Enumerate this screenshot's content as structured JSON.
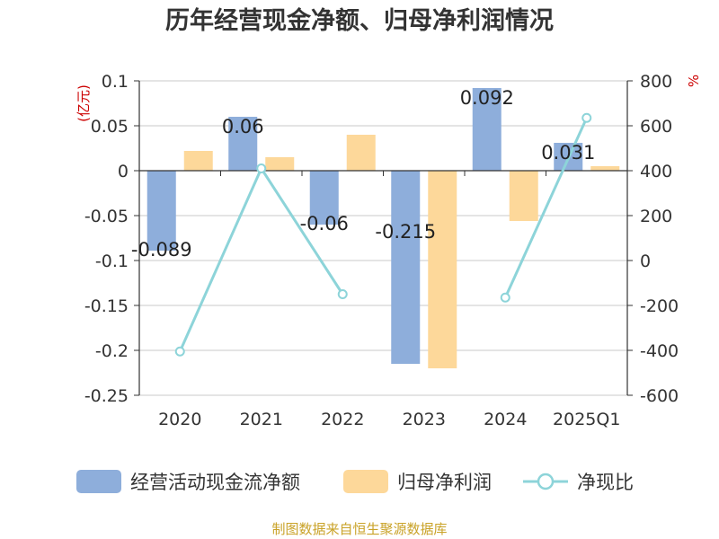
{
  "title": "历年经营现金净额、归母净利润情况",
  "source": "制图数据来自恒生聚源数据库",
  "colors": {
    "cash": "#8eaedb",
    "profit": "#fdd89a",
    "ratio": "#8dd4d9",
    "axis": "#333333",
    "grid": "#c8c8c8",
    "unit": "#cc0000"
  },
  "chart_data": {
    "type": "bar",
    "categories": [
      "2020",
      "2021",
      "2022",
      "2023",
      "2024",
      "2025Q1"
    ],
    "left_axis": {
      "unit": "亿元",
      "ylim": [
        -0.25,
        0.1
      ],
      "ticks": [
        0.1,
        0.05,
        0,
        -0.05,
        -0.1,
        -0.15,
        -0.2,
        -0.25
      ],
      "tick_labels": [
        "0.1",
        "0.05",
        "0",
        "-0.05",
        "-0.1",
        "-0.15",
        "-0.2",
        "-0.25"
      ]
    },
    "right_axis": {
      "unit": "%",
      "ylim": [
        -600,
        800
      ],
      "ticks": [
        800,
        600,
        400,
        200,
        0,
        -200,
        -400,
        -600
      ],
      "tick_labels": [
        "800",
        "600",
        "400",
        "200",
        "0",
        "-200",
        "-400",
        "-600"
      ]
    },
    "series": [
      {
        "name": "经营活动现金流净额",
        "type": "bar",
        "axis": "left",
        "values": [
          -0.089,
          0.06,
          -0.06,
          -0.215,
          0.092,
          0.031
        ],
        "labels": [
          "-0.089",
          "0.06",
          "-0.06",
          "-0.215",
          "0.092",
          "0.031"
        ]
      },
      {
        "name": "归母净利润",
        "type": "bar",
        "axis": "left",
        "values": [
          0.022,
          0.015,
          0.04,
          -0.22,
          -0.056,
          0.005
        ]
      },
      {
        "name": "净现比",
        "type": "line",
        "axis": "right",
        "values": [
          -405,
          410,
          -150,
          null,
          -165,
          635
        ]
      }
    ],
    "grid": true,
    "legend": "bottom"
  }
}
